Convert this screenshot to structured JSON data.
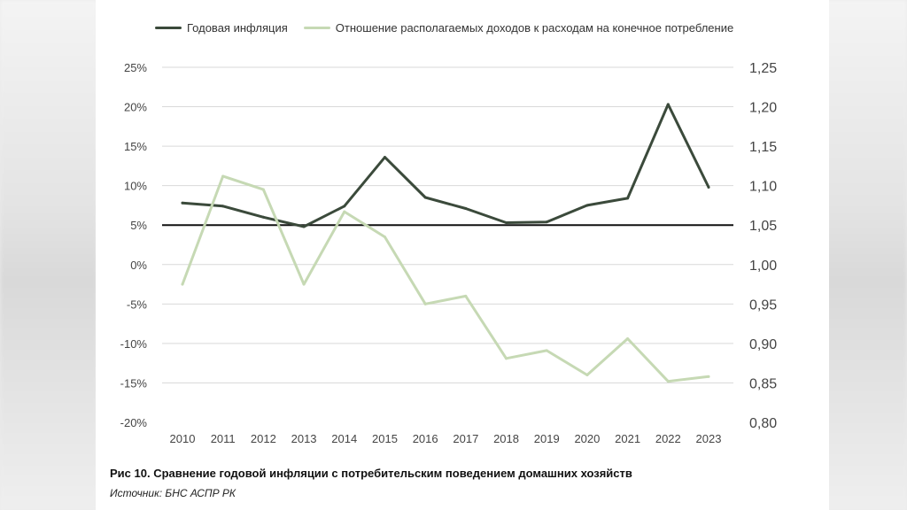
{
  "legend": {
    "series1": "Годовая инфляция",
    "series2": "Отношение располагаемых доходов к расходам на конечное потребление"
  },
  "caption": "Рис 10. Сравнение годовой инфляции с потребительским поведением домашних хозяйств",
  "source": "Источник: БНС АСПР РК",
  "colors": {
    "inflation": "#3b4a3b",
    "ratio": "#c6d9b4",
    "baseline": "#111111",
    "grid": "#d9d9d9"
  },
  "chart_data": {
    "type": "line",
    "categories": [
      "2010",
      "2011",
      "2012",
      "2013",
      "2014",
      "2015",
      "2016",
      "2017",
      "2018",
      "2019",
      "2020",
      "2021",
      "2022",
      "2023"
    ],
    "y_left_ticks": [
      "-20%",
      "-15%",
      "-10%",
      "-5%",
      "0%",
      "5%",
      "10%",
      "15%",
      "20%",
      "25%"
    ],
    "y_left_range": [
      -20,
      25
    ],
    "y_right_ticks": [
      "0,80",
      "0,85",
      "0,90",
      "0,95",
      "1,00",
      "1,05",
      "1,10",
      "1,15",
      "1,20",
      "1,25"
    ],
    "y_right_range": [
      0.8,
      1.25
    ],
    "reference_line": {
      "axis": "left",
      "value": 5
    },
    "grid": true,
    "legend_position": "top",
    "series": [
      {
        "name": "Годовая инфляция",
        "axis": "left",
        "values": [
          7.8,
          7.4,
          6.0,
          4.8,
          7.4,
          13.6,
          8.5,
          7.1,
          5.3,
          5.4,
          7.5,
          8.4,
          20.3,
          9.8
        ]
      },
      {
        "name": "Отношение располагаемых доходов к расходам на конечное потребление",
        "axis": "right",
        "values": [
          0.975,
          1.112,
          1.095,
          0.975,
          1.067,
          1.035,
          0.95,
          0.96,
          0.881,
          0.891,
          0.86,
          0.906,
          0.852,
          0.858
        ]
      }
    ]
  }
}
